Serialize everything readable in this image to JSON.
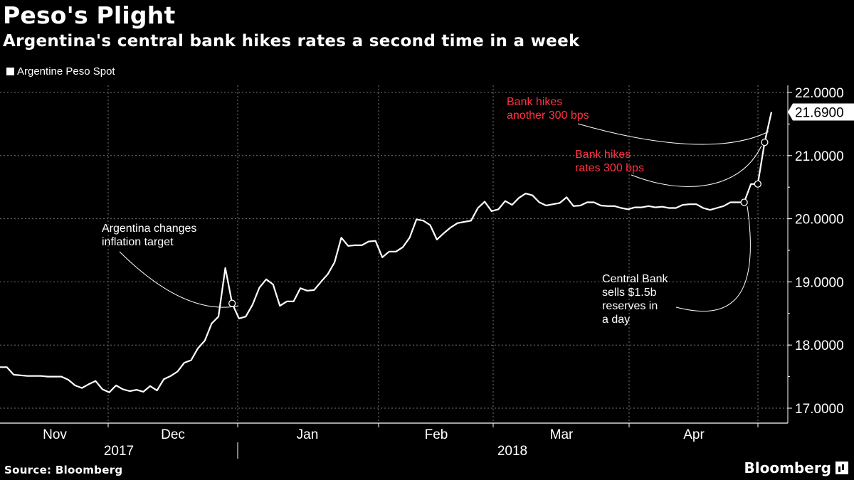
{
  "title": "Peso's Plight",
  "subtitle": "Argentina's central bank hikes rates a second time in a week",
  "source": "Source: Bloomberg",
  "brand": "Bloomberg",
  "colors": {
    "background": "#000000",
    "line": "#ffffff",
    "annotation_red": "#ff3344",
    "grid": "#777777"
  },
  "chart_data": {
    "type": "line",
    "title": "Peso's Plight",
    "subtitle": "Argentina's central bank hikes rates a second time in a week",
    "series": [
      {
        "name": "Argentine Peso Spot",
        "values": [
          17.65,
          17.65,
          17.53,
          17.52,
          17.51,
          17.51,
          17.51,
          17.5,
          17.5,
          17.5,
          17.45,
          17.36,
          17.32,
          17.38,
          17.43,
          17.3,
          17.25,
          17.36,
          17.3,
          17.27,
          17.29,
          17.26,
          17.35,
          17.28,
          17.46,
          17.51,
          17.58,
          17.72,
          17.76,
          17.95,
          18.07,
          18.34,
          18.45,
          19.22,
          18.66,
          18.42,
          18.45,
          18.64,
          18.91,
          19.04,
          18.96,
          18.62,
          18.69,
          18.69,
          18.9,
          18.86,
          18.87,
          19.0,
          19.12,
          19.31,
          19.7,
          19.57,
          19.58,
          19.58,
          19.64,
          19.65,
          19.39,
          19.48,
          19.48,
          19.55,
          19.7,
          19.99,
          19.97,
          19.9,
          19.67,
          19.77,
          19.86,
          19.93,
          19.95,
          19.97,
          20.17,
          20.27,
          20.12,
          20.15,
          20.28,
          20.22,
          20.33,
          20.4,
          20.37,
          20.26,
          20.21,
          20.23,
          20.25,
          20.34,
          20.2,
          20.21,
          20.26,
          20.26,
          20.21,
          20.2,
          20.2,
          20.17,
          20.15,
          20.18,
          20.18,
          20.2,
          20.18,
          20.19,
          20.17,
          20.17,
          20.22,
          20.23,
          20.23,
          20.17,
          20.14,
          20.17,
          20.2,
          20.26,
          20.26,
          20.26,
          20.55,
          20.55,
          21.21,
          21.69
        ]
      }
    ],
    "legend": "top-left",
    "ylim": [
      16.8,
      22.2
    ],
    "y_ticks": [
      "22.0000",
      "21.0000",
      "20.0000",
      "19.0000",
      "18.0000",
      "17.0000"
    ],
    "x_ticks": [
      "Nov",
      "Dec",
      "Jan",
      "Feb",
      "Mar",
      "Apr"
    ],
    "year_labels": [
      "2017",
      "2018"
    ],
    "last_value": "21.6900",
    "grid": true,
    "annotations": [
      {
        "text": [
          "Argentina changes",
          "inflation target"
        ],
        "color": "#ffffff"
      },
      {
        "text": [
          "Bank hikes",
          "another 300 bps"
        ],
        "color": "#ff3344"
      },
      {
        "text": [
          "Bank hikes",
          "rates 300 bps"
        ],
        "color": "#ff3344"
      },
      {
        "text": [
          "Central Bank",
          "sells $1.5b",
          "reserves in",
          "a day"
        ],
        "color": "#ffffff"
      }
    ]
  }
}
